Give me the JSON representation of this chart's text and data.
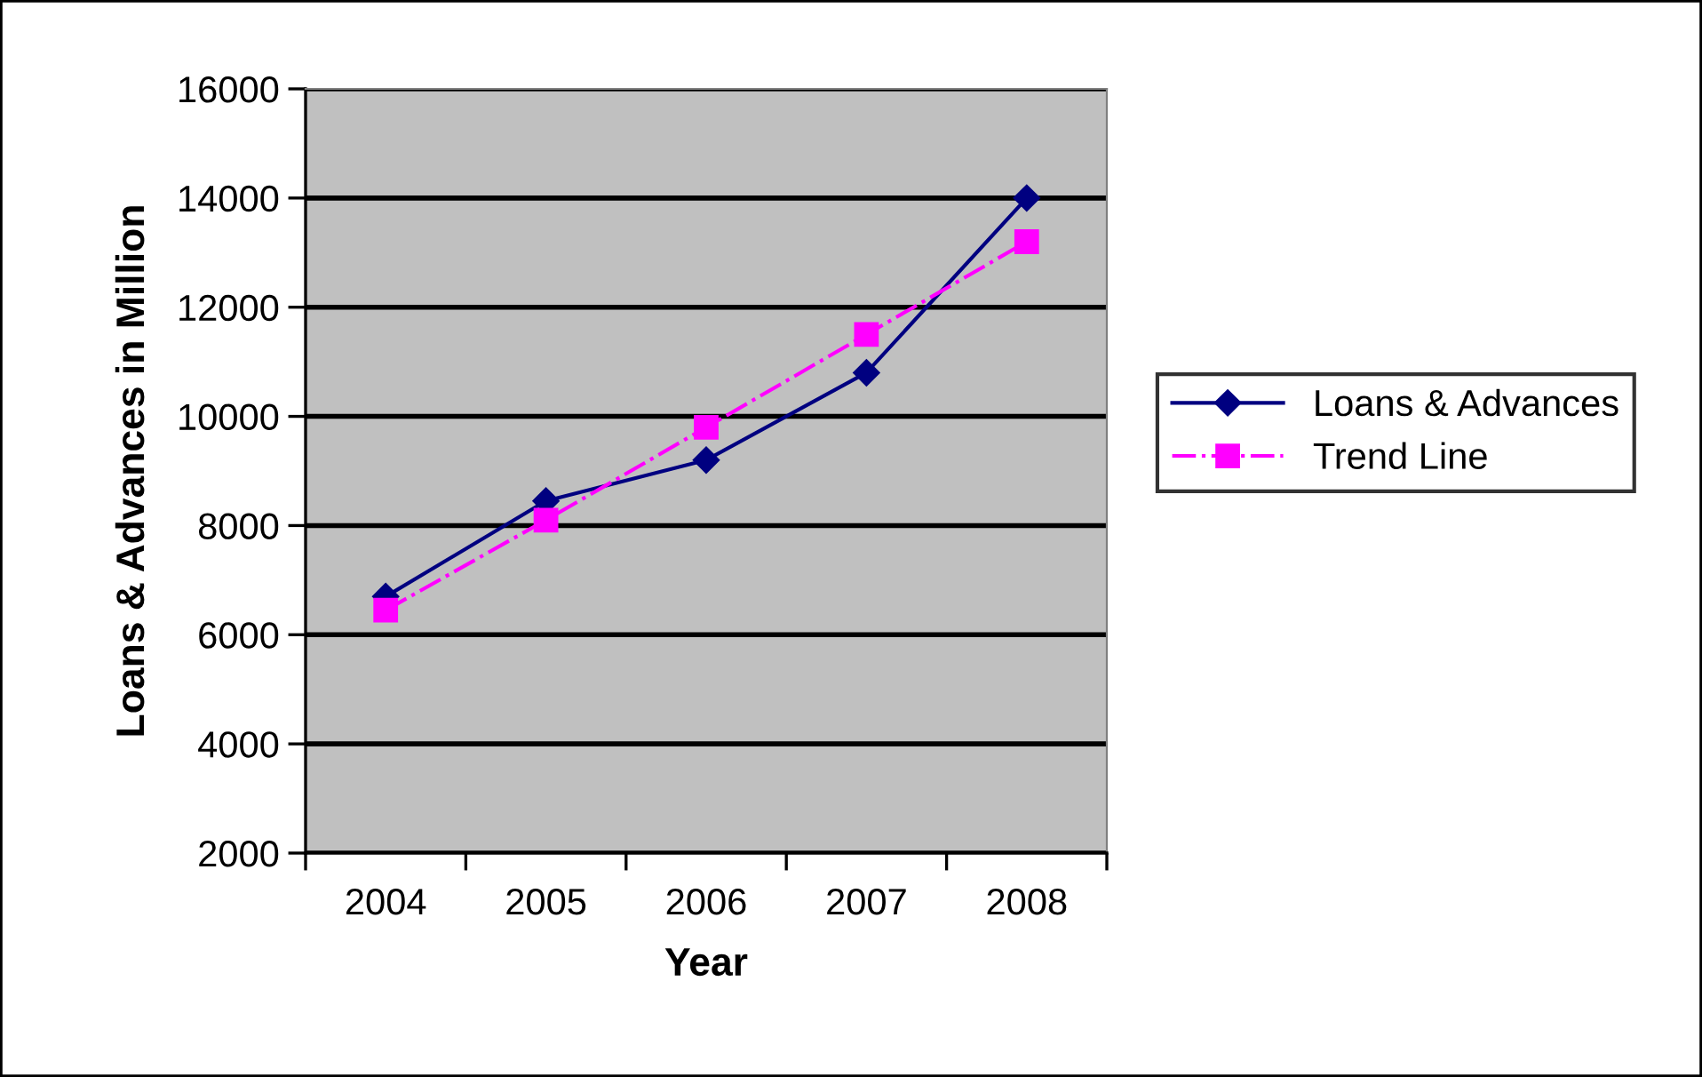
{
  "chart_data": {
    "type": "line",
    "xlabel": "Year",
    "ylabel": "Loans & Advances in Million",
    "categories": [
      "2004",
      "2005",
      "2006",
      "2007",
      "2008"
    ],
    "series": [
      {
        "name": "Loans & Advances",
        "color": "#000080",
        "values": [
          6700,
          8450,
          9200,
          10800,
          14000
        ],
        "marker": "diamond",
        "line_style": "solid"
      },
      {
        "name": "Trend Line",
        "color": "#ff00ff",
        "values": [
          6450,
          8100,
          9800,
          11500,
          13200
        ],
        "marker": "square",
        "line_style": "dashdot"
      }
    ],
    "ylim": [
      2000,
      16000
    ],
    "yticks": [
      2000,
      4000,
      6000,
      8000,
      10000,
      12000,
      14000,
      16000
    ],
    "grid": "y",
    "legend": "right"
  }
}
